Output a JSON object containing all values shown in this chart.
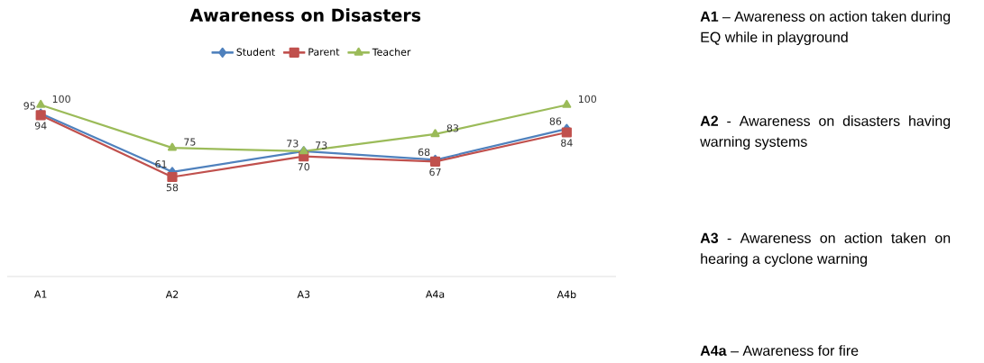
{
  "chart_data": {
    "type": "line",
    "title": "Awareness on Disasters",
    "categories": [
      "A1",
      "A2",
      "A3",
      "A4a",
      "A4b"
    ],
    "series": [
      {
        "name": "Student",
        "color": "#4f81bd",
        "marker": "diamond",
        "values": [
          95,
          61,
          73,
          68,
          86
        ]
      },
      {
        "name": "Parent",
        "color": "#c0504d",
        "marker": "square",
        "values": [
          94,
          58,
          70,
          67,
          84
        ]
      },
      {
        "name": "Teacher",
        "color": "#9bbb59",
        "marker": "triangle",
        "values": [
          100,
          75,
          73,
          83,
          100
        ]
      }
    ],
    "data_labels": true,
    "legend": "top",
    "annotations": [
      "**A1** – Awareness on action taken during EQ while in playground",
      "**A2**  -  Awareness on disasters having warning systems",
      "**A3**  -  Awareness on action taken on hearing a cyclone warning",
      "**A4a** – Awareness for fire"
    ]
  }
}
